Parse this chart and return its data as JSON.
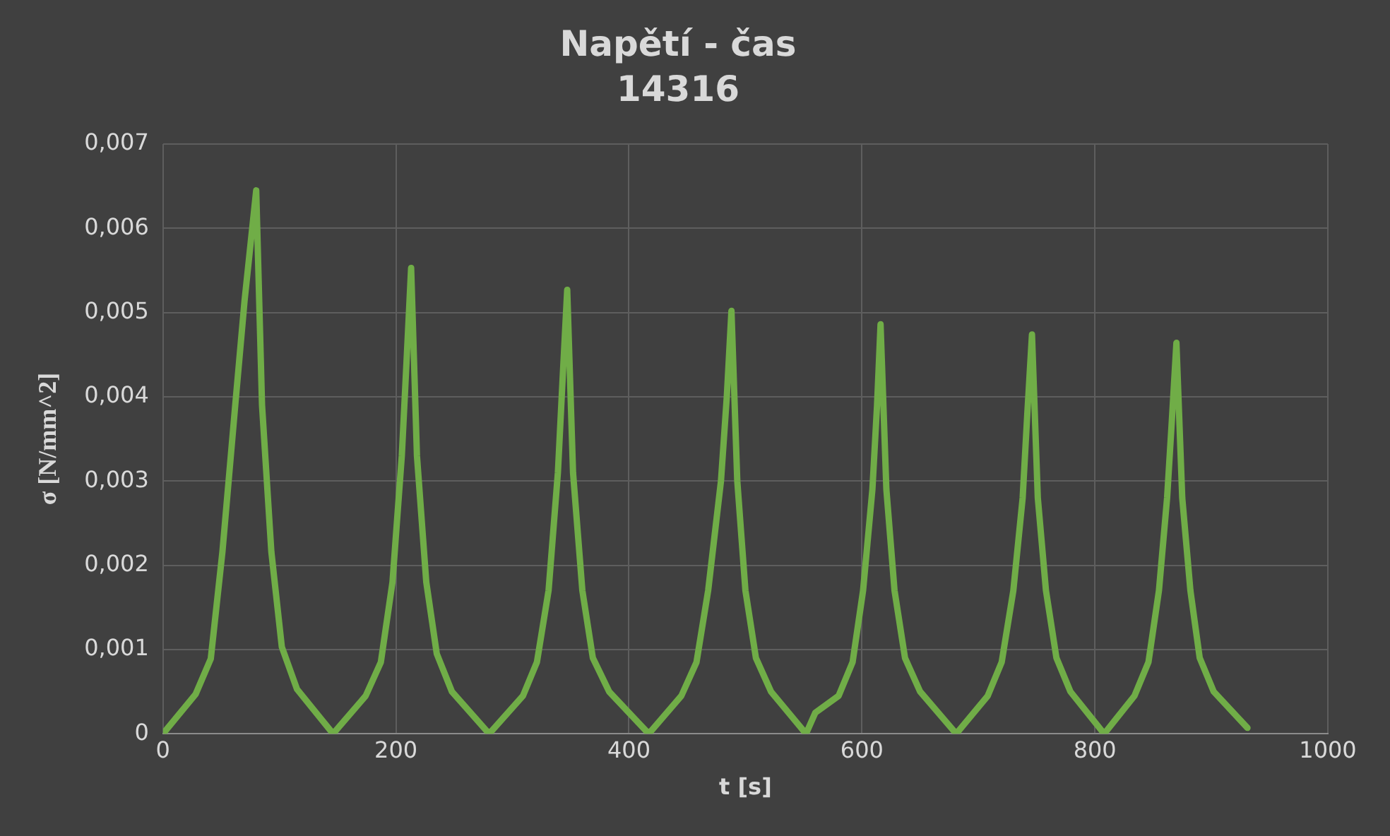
{
  "chart_data": {
    "type": "line",
    "title": "Napětí - čas",
    "subtitle": "14316",
    "xlabel": "t [s]",
    "ylabel": "σ [N/mm^2]",
    "x": [
      0,
      28,
      41,
      51,
      62,
      70,
      80,
      85,
      93,
      102,
      115,
      146,
      174,
      187,
      197,
      205,
      209,
      213,
      218,
      226,
      235,
      248,
      280,
      309,
      321,
      331,
      339,
      343,
      347,
      352,
      360,
      369,
      383,
      417,
      445,
      458,
      468,
      479,
      484,
      488,
      493,
      500,
      509,
      522,
      552,
      560,
      580,
      592,
      601,
      609,
      613,
      616,
      621,
      628,
      637,
      650,
      681,
      708,
      720,
      730,
      738,
      742,
      746,
      751,
      758,
      767,
      779,
      808,
      834,
      846,
      855,
      862,
      866,
      870,
      875,
      882,
      890,
      902,
      931
    ],
    "series": [
      {
        "color": "#70ad47",
        "values": [
          0,
          0.00047,
          0.00089,
          0.00216,
          0.0039,
          0.00514,
          0.00645,
          0.0039,
          0.00216,
          0.00103,
          0.00053,
          0,
          0.00045,
          0.00085,
          0.0018,
          0.0033,
          0.0044,
          0.00553,
          0.0033,
          0.0018,
          0.00095,
          0.0005,
          0,
          0.00045,
          0.00085,
          0.0017,
          0.0031,
          0.0042,
          0.00527,
          0.0031,
          0.0017,
          0.0009,
          0.0005,
          0,
          0.00045,
          0.00085,
          0.0017,
          0.003,
          0.004,
          0.00502,
          0.003,
          0.0017,
          0.0009,
          0.0005,
          0,
          0.00025,
          0.00045,
          0.00085,
          0.0017,
          0.0029,
          0.0039,
          0.00486,
          0.0029,
          0.0017,
          0.0009,
          0.0005,
          0,
          0.00045,
          0.00085,
          0.0017,
          0.0028,
          0.0038,
          0.00474,
          0.0028,
          0.0017,
          0.0009,
          0.0005,
          0,
          0.00045,
          0.00085,
          0.0017,
          0.0028,
          0.0037,
          0.00464,
          0.0028,
          0.0017,
          0.0009,
          0.0005,
          7e-05
        ]
      }
    ],
    "xlim": [
      0,
      1000
    ],
    "xticks": [
      0,
      200,
      400,
      600,
      800,
      1000
    ],
    "ylim": [
      0,
      0.007
    ],
    "yticks": [
      {
        "value": 0,
        "label": "0"
      },
      {
        "value": 0.001,
        "label": "0,001"
      },
      {
        "value": 0.002,
        "label": "0,002"
      },
      {
        "value": 0.003,
        "label": "0,003"
      },
      {
        "value": 0.004,
        "label": "0,004"
      },
      {
        "value": 0.005,
        "label": "0,005"
      },
      {
        "value": 0.006,
        "label": "0,006"
      },
      {
        "value": 0.007,
        "label": "0,007"
      }
    ],
    "grid": true,
    "legend": false,
    "marker": "none",
    "line_style": "solid"
  }
}
